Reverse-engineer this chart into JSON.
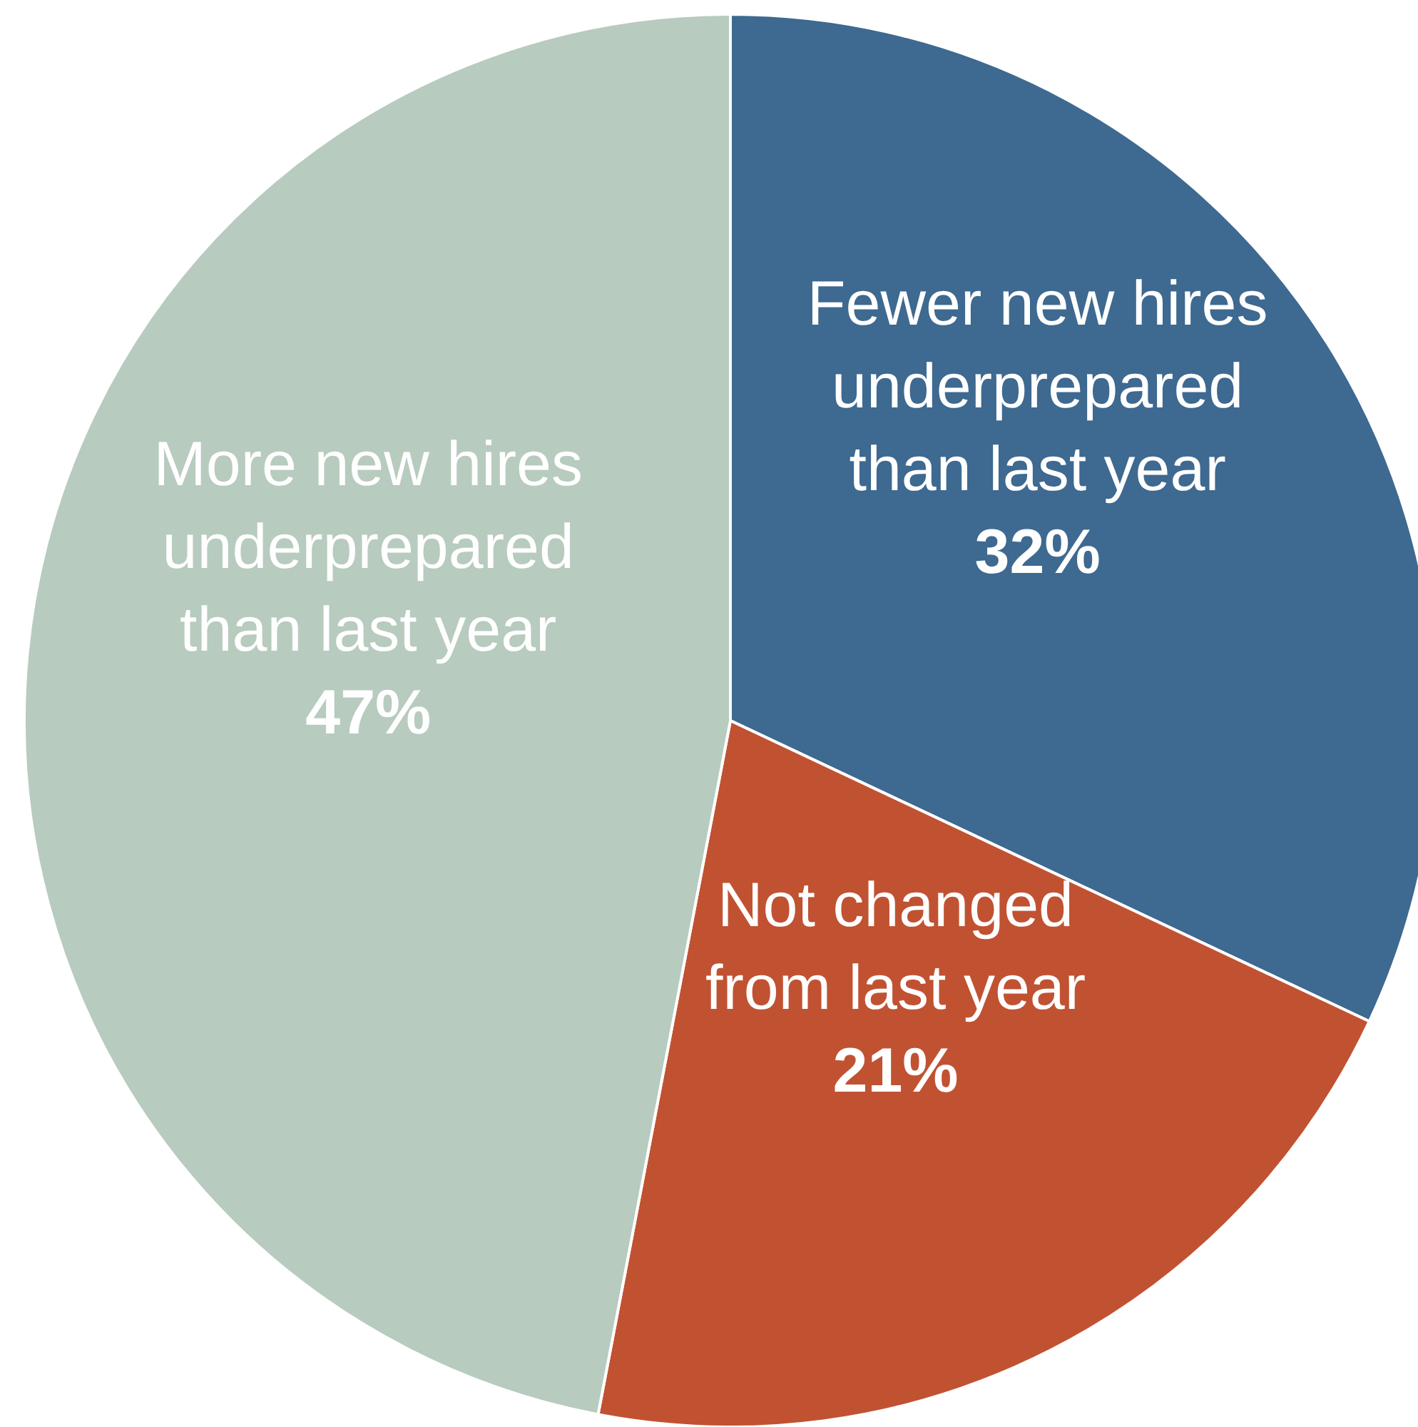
{
  "chart_data": {
    "type": "pie",
    "categories": [
      "Fewer new hires underprepared than last year",
      "Not changed from last year",
      "More new hires underprepared than last year"
    ],
    "values": [
      32,
      21,
      47
    ],
    "colors": [
      "#3e6990",
      "#c05232",
      "#b7cbbf"
    ],
    "value_labels": [
      "32%",
      "21%",
      "47%"
    ]
  }
}
